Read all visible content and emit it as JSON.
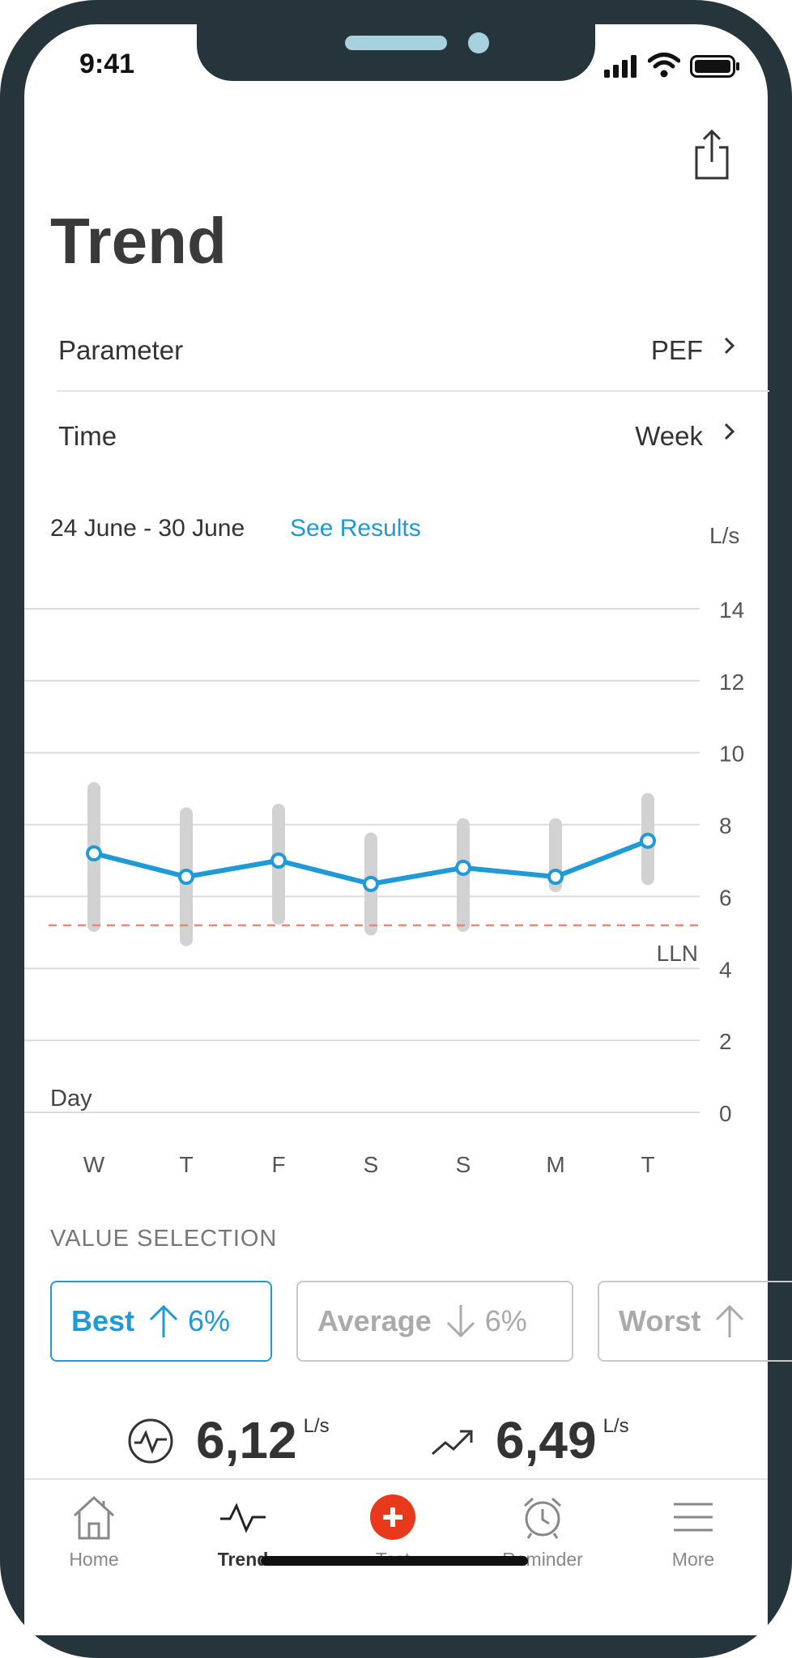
{
  "status": {
    "time": "9:41"
  },
  "header": {
    "title": "Trend"
  },
  "settings": {
    "parameter": {
      "label": "Parameter",
      "value": "PEF"
    },
    "time": {
      "label": "Time",
      "value": "Week"
    }
  },
  "range": {
    "dates": "24 June - 30 June",
    "see_results": "See Results"
  },
  "chart_data": {
    "type": "line",
    "unit": "L/s",
    "xlabel": "Day",
    "categories": [
      "W",
      "T",
      "F",
      "S",
      "S",
      "M",
      "T"
    ],
    "y_ticks": [
      "0",
      "2",
      "4",
      "6",
      "8",
      "10",
      "12",
      "14"
    ],
    "ylim": [
      0,
      14
    ],
    "values": [
      7.2,
      6.55,
      7.0,
      6.35,
      6.8,
      6.55,
      7.55
    ],
    "ranges": [
      [
        5.2,
        9.0
      ],
      [
        4.8,
        8.3
      ],
      [
        5.4,
        8.4
      ],
      [
        5.1,
        7.6
      ],
      [
        5.2,
        8.0
      ],
      [
        6.3,
        8.0
      ],
      [
        6.5,
        8.7
      ]
    ],
    "lln": 5.2,
    "lln_label": "LLN",
    "line_color": "#1f9ad6",
    "lln_color": "#f0856a",
    "grid": true
  },
  "value_selection": {
    "label": "VALUE SELECTION",
    "options": [
      {
        "name": "Best",
        "change": "6%",
        "direction": "up",
        "selected": true
      },
      {
        "name": "Average",
        "change": "6%",
        "direction": "down",
        "selected": false
      },
      {
        "name": "Worst",
        "change": "",
        "direction": "up",
        "selected": false
      }
    ]
  },
  "stats": [
    {
      "icon": "pulse-icon",
      "value": "6,12",
      "unit": "L/s"
    },
    {
      "icon": "trend-up-icon",
      "value": "6,49",
      "unit": "L/s"
    }
  ],
  "tabbar": {
    "items": [
      {
        "label": "Home",
        "icon": "home-icon"
      },
      {
        "label": "Trend",
        "icon": "trend-icon",
        "active": true
      },
      {
        "label": "Test",
        "icon": "plus-circle-icon"
      },
      {
        "label": "Reminder",
        "icon": "alarm-icon"
      },
      {
        "label": "More",
        "icon": "menu-icon"
      }
    ]
  },
  "colors": {
    "accent": "#1f9ad6",
    "test_button": "#e8391c",
    "frame": "#26343b"
  }
}
